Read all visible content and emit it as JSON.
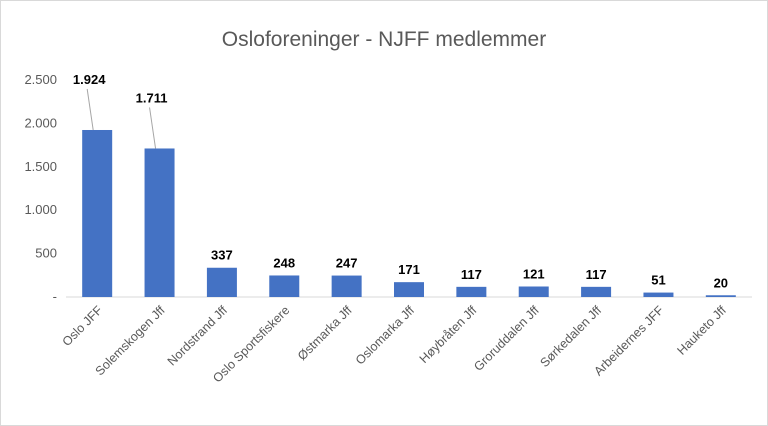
{
  "chart_data": {
    "type": "bar",
    "title": "Osloforeninger - NJFF medlemmer",
    "xlabel": "",
    "ylabel": "",
    "categories": [
      "Oslo JFF",
      "Solemskogen Jff",
      "Nordstrand Jff",
      "Oslo Sportsfiskere",
      "Østmarka Jff",
      "Oslomarka Jff",
      "Høybråten Jff",
      "Groruddalen Jff",
      "Sørkedalen Jff",
      "Arbeidernes JFF",
      "Hauketo Jff"
    ],
    "values": [
      1924,
      1711,
      337,
      248,
      247,
      171,
      117,
      121,
      117,
      51,
      20
    ],
    "value_labels": [
      "1.924",
      "1.711",
      "337",
      "248",
      "247",
      "171",
      "117",
      "121",
      "117",
      "51",
      "20"
    ],
    "ylim": [
      0,
      2500
    ],
    "y_ticks": [
      0,
      500,
      1000,
      1500,
      2000,
      2500
    ],
    "y_tick_labels": [
      "-",
      "500",
      "1.000",
      "1.500",
      "2.000",
      "2.500"
    ],
    "grid": false,
    "bar_color": "#4472c4"
  }
}
